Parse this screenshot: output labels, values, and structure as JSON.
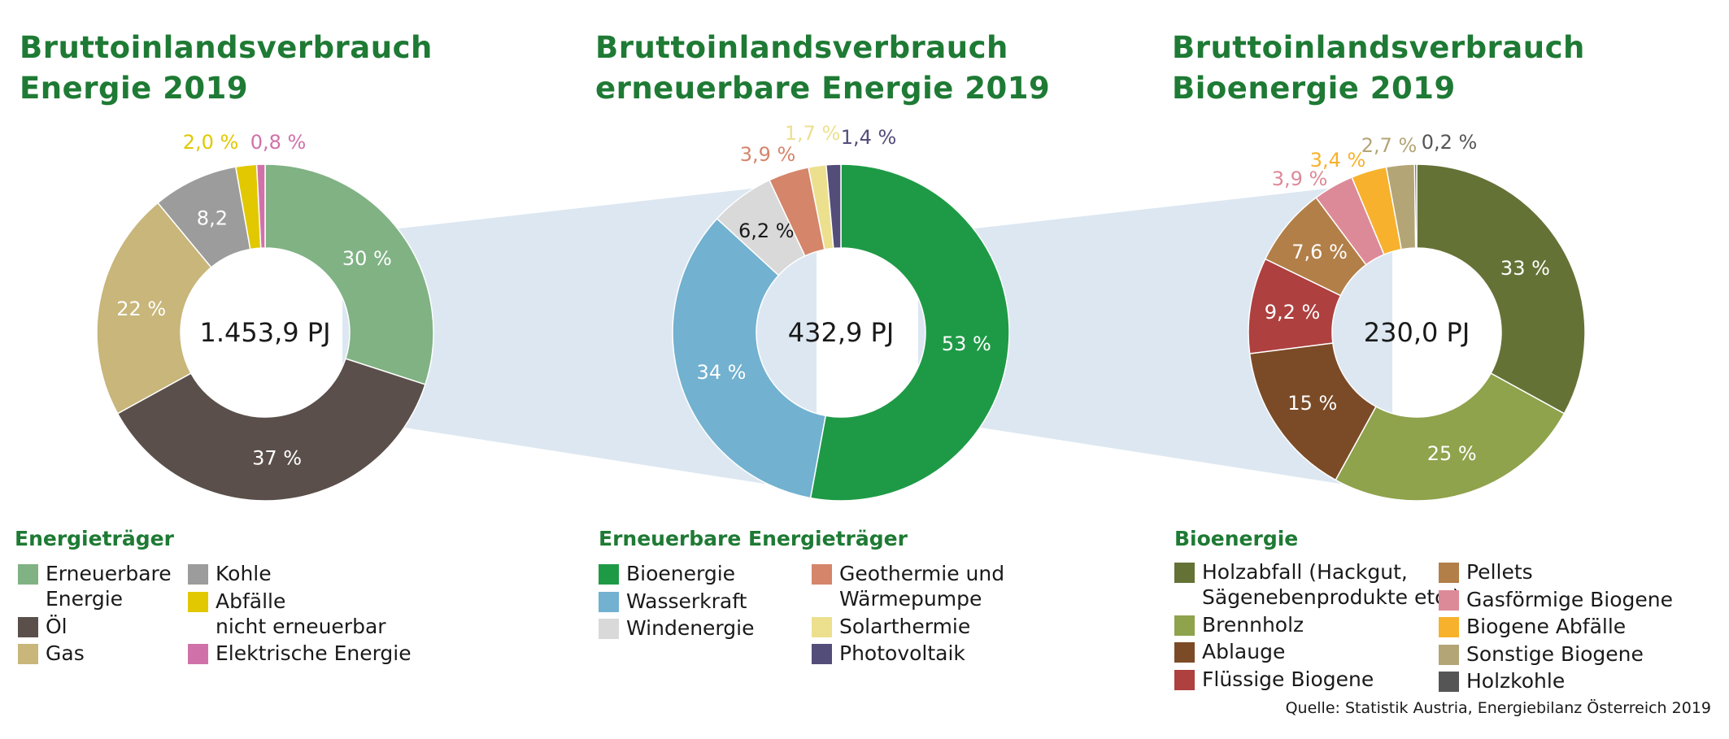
{
  "source": "Quelle: Statistik Austria, Energiebilanz Österreich 2019",
  "chart_data": [
    {
      "type": "pie",
      "title": [
        "Bruttoinlandsverbrauch",
        "Energie 2019"
      ],
      "center_label": "1.453,9 PJ",
      "legend_title": "Energieträger",
      "slices": [
        {
          "name": "Erneuerbare Energie",
          "value": 30,
          "label": "30 %",
          "color": "#80b284"
        },
        {
          "name": "Öl",
          "value": 37,
          "label": "37 %",
          "color": "#5a4f4a"
        },
        {
          "name": "Gas",
          "value": 22,
          "label": "22 %",
          "color": "#c8b67a"
        },
        {
          "name": "Kohle",
          "value": 8.2,
          "label": "8,2",
          "color": "#9c9c9c"
        },
        {
          "name": "Abfälle nicht erneuerbar",
          "value": 2.0,
          "label": "2,0 %",
          "color": "#e1c800"
        },
        {
          "name": "Elektrische Energie",
          "value": 0.8,
          "label": "0,8 %",
          "color": "#d072a9"
        }
      ],
      "legend": [
        {
          "lines": [
            "Erneuerbare",
            "Energie"
          ],
          "color": "#80b284"
        },
        {
          "lines": [
            "Öl"
          ],
          "color": "#5a4f4a"
        },
        {
          "lines": [
            "Gas"
          ],
          "color": "#c8b67a"
        },
        {
          "lines": [
            "Kohle"
          ],
          "color": "#9c9c9c"
        },
        {
          "lines": [
            "Abfälle",
            "nicht erneuerbar"
          ],
          "color": "#e1c800"
        },
        {
          "lines": [
            "Elektrische Energie"
          ],
          "color": "#d072a9"
        }
      ]
    },
    {
      "type": "pie",
      "title": [
        "Bruttoinlandsverbrauch",
        "erneuerbare Energie 2019"
      ],
      "center_label": "432,9 PJ",
      "legend_title": "Erneuerbare Energieträger",
      "slices": [
        {
          "name": "Bioenergie",
          "value": 53,
          "label": "53 %",
          "color": "#1e9a46"
        },
        {
          "name": "Wasserkraft",
          "value": 34,
          "label": "34 %",
          "color": "#72b1d0"
        },
        {
          "name": "Windenergie",
          "value": 6.2,
          "label": "6,2 %",
          "color": "#d9d9d9"
        },
        {
          "name": "Geothermie und Wärmepumpe",
          "value": 3.9,
          "label": "3,9 %",
          "color": "#d4856a"
        },
        {
          "name": "Solarthermie",
          "value": 1.7,
          "label": "1,7 %",
          "color": "#ece08e"
        },
        {
          "name": "Photovoltaik",
          "value": 1.4,
          "label": "1,4 %",
          "color": "#534d7a"
        }
      ],
      "legend": [
        {
          "lines": [
            "Bioenergie"
          ],
          "color": "#1e9a46"
        },
        {
          "lines": [
            "Wasserkraft"
          ],
          "color": "#72b1d0"
        },
        {
          "lines": [
            "Windenergie"
          ],
          "color": "#d9d9d9"
        },
        {
          "lines": [
            "Geothermie und",
            "Wärmepumpe"
          ],
          "color": "#d4856a"
        },
        {
          "lines": [
            "Solarthermie"
          ],
          "color": "#ece08e"
        },
        {
          "lines": [
            "Photovoltaik"
          ],
          "color": "#534d7a"
        }
      ]
    },
    {
      "type": "pie",
      "title": [
        "Bruttoinlandsverbrauch",
        "Bioenergie 2019"
      ],
      "center_label": "230,0 PJ",
      "legend_title": "Bioenergie",
      "slices": [
        {
          "name": "Holzabfall (Hackgut, Sägenebenprodukte etc.)",
          "value": 33,
          "label": "33 %",
          "color": "#647236"
        },
        {
          "name": "Brennholz",
          "value": 25,
          "label": "25 %",
          "color": "#8fa24c"
        },
        {
          "name": "Ablauge",
          "value": 15,
          "label": "15 %",
          "color": "#7b4b27"
        },
        {
          "name": "Flüssige Biogene",
          "value": 9.2,
          "label": "9,2 %",
          "color": "#ae4040"
        },
        {
          "name": "Pellets",
          "value": 7.6,
          "label": "7,6 %",
          "color": "#b27f48"
        },
        {
          "name": "Gasförmige Biogene",
          "value": 3.9,
          "label": "3,9 %",
          "color": "#dd8a98"
        },
        {
          "name": "Biogene Abfälle",
          "value": 3.4,
          "label": "3,4 %",
          "color": "#f7b12c"
        },
        {
          "name": "Sonstige Biogene",
          "value": 2.7,
          "label": "2,7 %",
          "color": "#b3a576"
        },
        {
          "name": "Holzkohle",
          "value": 0.2,
          "label": "0,2 %",
          "color": "#555555"
        }
      ],
      "legend": [
        {
          "lines": [
            "Holzabfall (Hackgut,",
            "Sägenebenprodukte etc.)"
          ],
          "color": "#647236"
        },
        {
          "lines": [
            "Brennholz"
          ],
          "color": "#8fa24c"
        },
        {
          "lines": [
            "Ablauge"
          ],
          "color": "#7b4b27"
        },
        {
          "lines": [
            "Flüssige Biogene"
          ],
          "color": "#ae4040"
        },
        {
          "lines": [
            "Pellets"
          ],
          "color": "#b27f48"
        },
        {
          "lines": [
            "Gasförmige Biogene"
          ],
          "color": "#dd8a98"
        },
        {
          "lines": [
            "Biogene Abfälle"
          ],
          "color": "#f7b12c"
        },
        {
          "lines": [
            "Sonstige Biogene"
          ],
          "color": "#b3a576"
        },
        {
          "lines": [
            "Holzkohle"
          ],
          "color": "#555555"
        }
      ]
    }
  ]
}
